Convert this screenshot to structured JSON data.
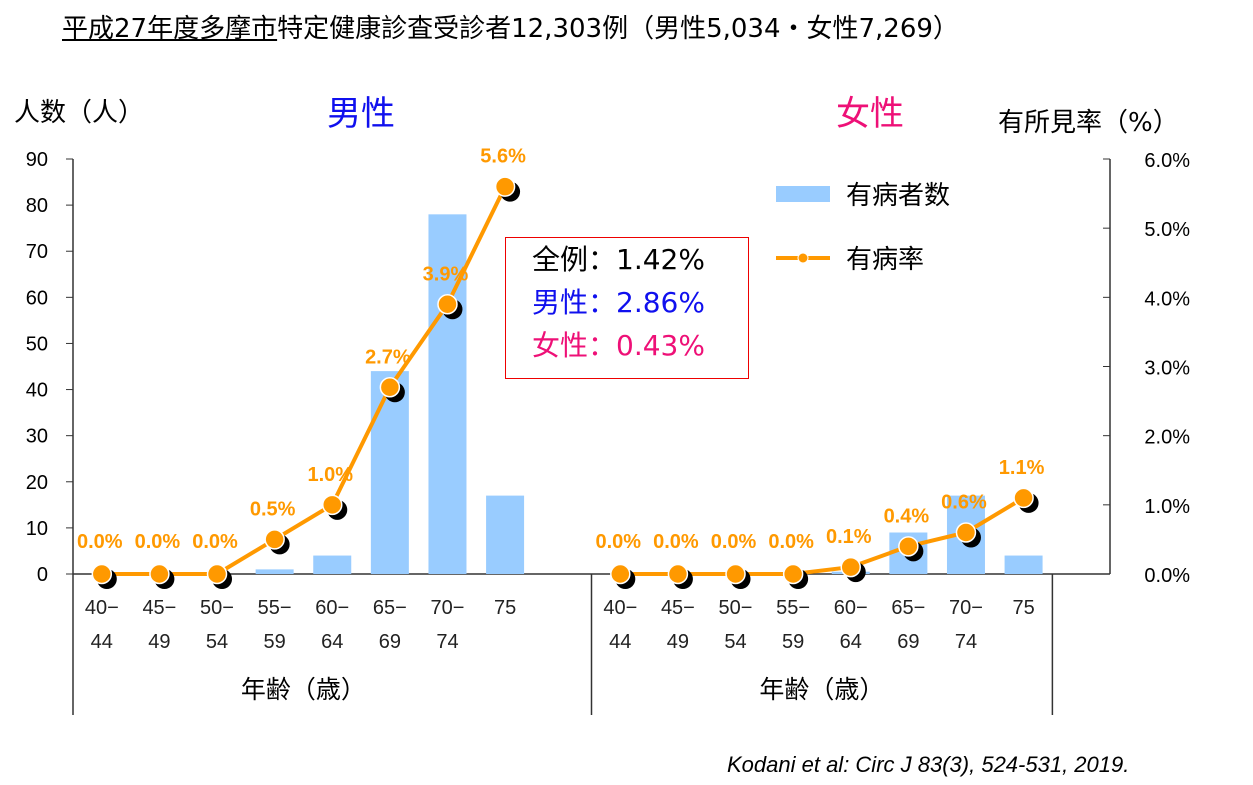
{
  "title_underlined": "平成27年度多摩市",
  "title_rest": "特定健康診査受診者12,303例（男性5,034・女性7,269）",
  "left_axis_label": "人数（人）",
  "right_axis_label": "有所見率（%）",
  "male_heading": "男性",
  "female_heading": "女性",
  "summary": {
    "all": "全例：1.42%",
    "male": "男性：2.86%",
    "female": "女性：0.43%"
  },
  "citation": "Kodani et al: Circ J 83(3), 524-531, 2019.",
  "colors": {
    "bar": "#99ccff",
    "line": "#ff9900",
    "male": "#1010ee",
    "female": "#ee1077",
    "box": "#ee0000"
  },
  "chart_data": {
    "type": "bar+line",
    "categories": [
      "40-\n44",
      "45-\n49",
      "50-\n54",
      "55-\n59",
      "60-\n64",
      "65-\n69",
      "70-\n74",
      "75"
    ],
    "xlabel": "年齢（歳）",
    "ylabel": "人数（人）",
    "y2label": "有所見率（%）",
    "ylim": [
      0,
      90
    ],
    "yticks": [
      "0",
      "10",
      "20",
      "30",
      "40",
      "50",
      "60",
      "70",
      "80",
      "90"
    ],
    "y2lim": [
      0,
      6
    ],
    "y2ticks": [
      "0.0%",
      "1.0%",
      "2.0%",
      "3.0%",
      "4.0%",
      "5.0%",
      "6.0%"
    ],
    "legend": {
      "bar": "有病者数",
      "line": "有病率",
      "position": "top-right"
    },
    "panels": [
      {
        "name": "男性",
        "counts": [
          0,
          0,
          0,
          1,
          4,
          44,
          78,
          17
        ],
        "rates": [
          0.0,
          0.0,
          0.0,
          0.5,
          1.0,
          2.7,
          3.9,
          5.6
        ],
        "rate_labels": [
          "0.0%",
          "0.0%",
          "0.0%",
          "0.5%",
          "1.0%",
          "2.7%",
          "3.9%",
          "5.6%"
        ]
      },
      {
        "name": "女性",
        "counts": [
          0,
          0,
          0,
          0,
          0.5,
          9,
          17,
          4
        ],
        "rates": [
          0.0,
          0.0,
          0.0,
          0.0,
          0.1,
          0.4,
          0.6,
          1.1
        ],
        "rate_labels": [
          "0.0%",
          "0.0%",
          "0.0%",
          "0.0%",
          "0.1%",
          "0.4%",
          "0.6%",
          "1.1%"
        ]
      }
    ]
  }
}
